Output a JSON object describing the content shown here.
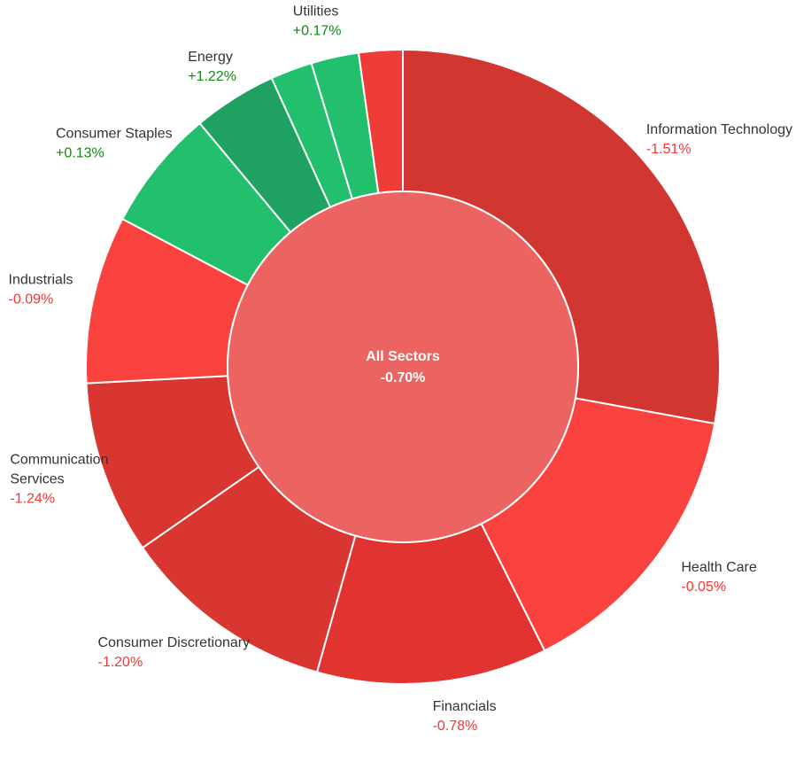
{
  "chart_data": {
    "type": "pie",
    "variant": "sunburst",
    "center": {
      "name": "All Sectors",
      "change": "-0.70%",
      "change_value": -0.7,
      "color": "#ec6461"
    },
    "series": [
      {
        "name": "Information Technology",
        "lines": [
          "Information Technology"
        ],
        "change": "-1.51%",
        "change_value": -1.51,
        "weight": 28.7,
        "color": "#d13631",
        "label_side": "right"
      },
      {
        "name": "Health Care",
        "lines": [
          "Health Care"
        ],
        "change": "-0.05%",
        "change_value": -0.05,
        "weight": 15.2,
        "color": "#fa423f",
        "label_side": "right"
      },
      {
        "name": "Financials",
        "lines": [
          "Financials"
        ],
        "change": "-0.78%",
        "change_value": -0.78,
        "weight": 12.1,
        "color": "#e1332f",
        "label_side": "right"
      },
      {
        "name": "Consumer Discretionary",
        "lines": [
          "Consumer Discretionary"
        ],
        "change": "-1.20%",
        "change_value": -1.2,
        "weight": 11.3,
        "color": "#d93631",
        "label_side": "left"
      },
      {
        "name": "Communication Services",
        "lines": [
          "Communication",
          "Services"
        ],
        "change": "-1.24%",
        "change_value": -1.24,
        "weight": 9.1,
        "color": "#d93631",
        "label_side": "left"
      },
      {
        "name": "Industrials",
        "lines": [
          "Industrials"
        ],
        "change": "-0.09%",
        "change_value": -0.09,
        "weight": 8.8,
        "color": "#fa423f",
        "label_side": "left"
      },
      {
        "name": "Consumer Staples",
        "lines": [
          "Consumer Staples"
        ],
        "change": "+0.13%",
        "change_value": 0.13,
        "weight": 6.4,
        "color": "#22c06d",
        "label_side": "left"
      },
      {
        "name": "Energy",
        "lines": [
          "Energy"
        ],
        "change": "+1.22%",
        "change_value": 1.22,
        "weight": 4.4,
        "color": "#1fa161",
        "label_side": "left"
      },
      {
        "name": "",
        "lines": [],
        "change": "",
        "change_value": null,
        "weight": 2.2,
        "color": "#22c06d",
        "label_side": "none"
      },
      {
        "name": "Utilities",
        "lines": [
          "Utilities"
        ],
        "change": "+0.17%",
        "change_value": 0.17,
        "weight": 2.5,
        "color": "#22c06d",
        "label_side": "left"
      },
      {
        "name": "",
        "lines": [],
        "change": "",
        "change_value": null,
        "weight": 2.3,
        "color": "#ef3c39",
        "label_side": "none"
      }
    ],
    "colors": {
      "positive_label": "#118a11",
      "negative_label": "#fa3333",
      "name_label": "#333333",
      "divider": "#ffffff"
    }
  }
}
